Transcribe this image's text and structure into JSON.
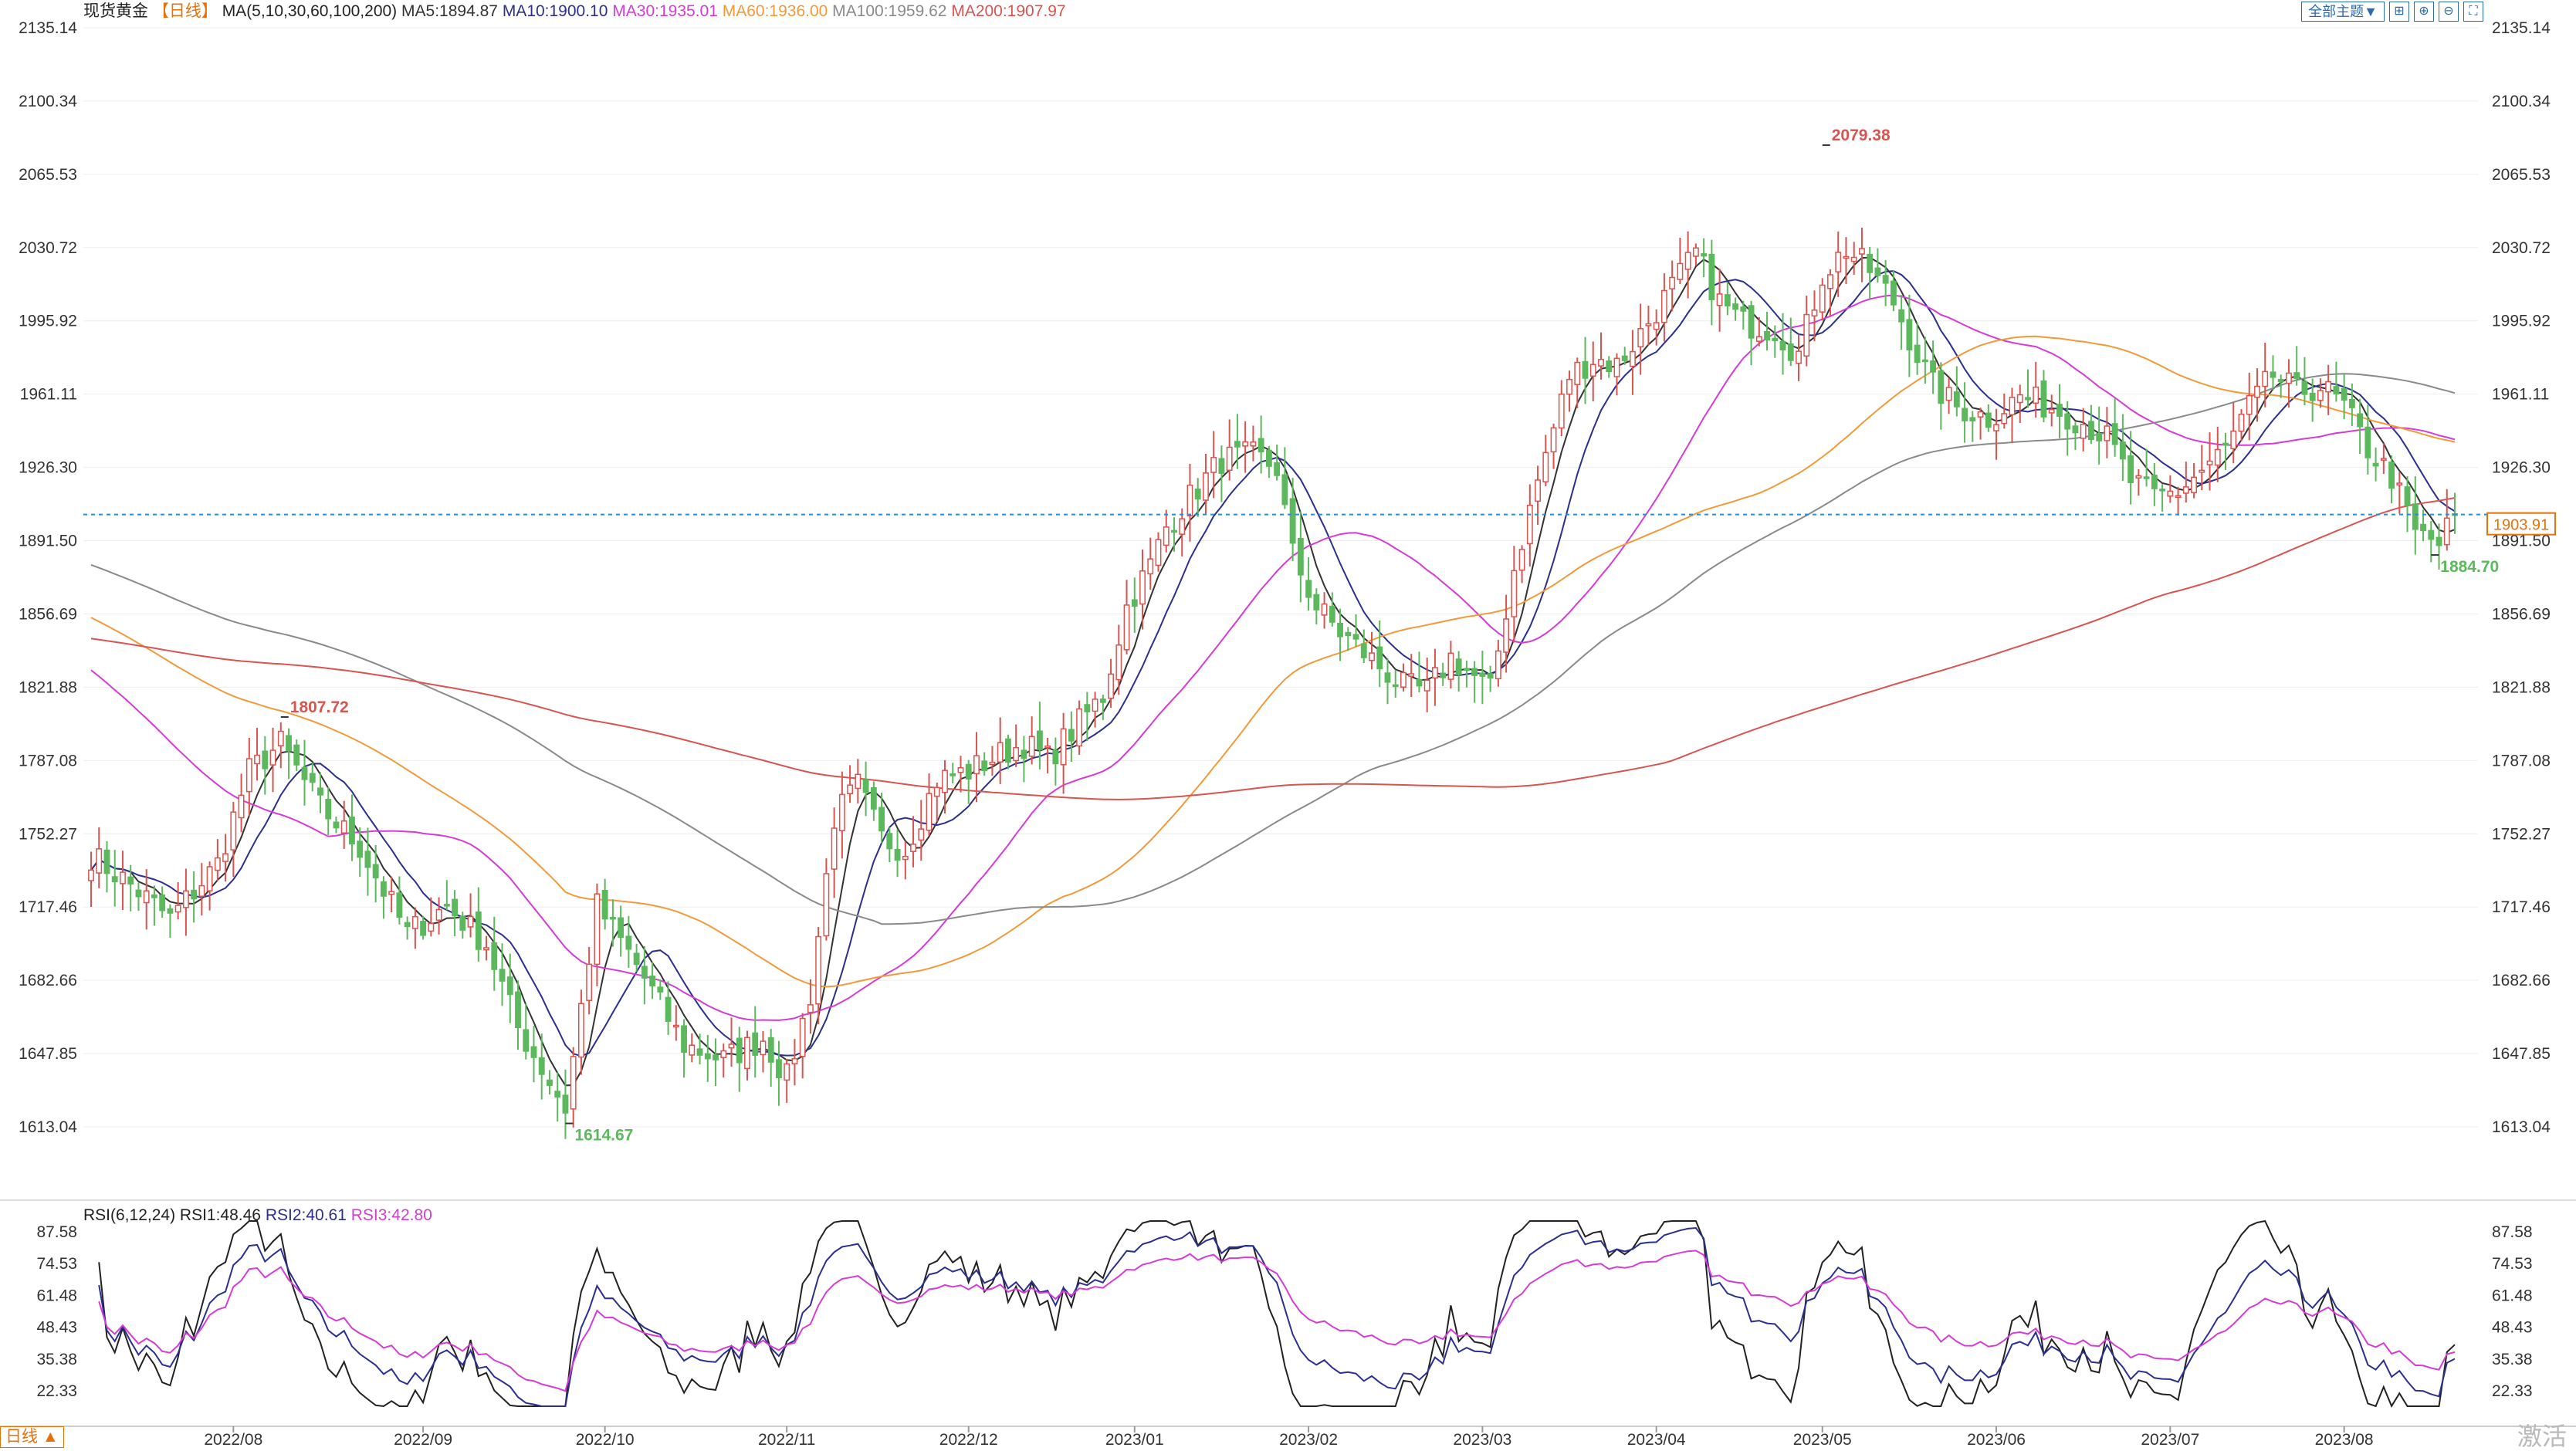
{
  "header": {
    "symbol": "现货黄金",
    "period_tag": "【日线】",
    "ma_label": "MA(5,10,30,60,100,200)",
    "ma_values": [
      {
        "text": "MA5:1894.87",
        "color": "#333333"
      },
      {
        "text": "MA10:1900.10",
        "color": "#2b2f8f"
      },
      {
        "text": "MA30:1935.01",
        "color": "#d63bd6"
      },
      {
        "text": "MA60:1936.00",
        "color": "#f29a3a"
      },
      {
        "text": "MA100:1959.62",
        "color": "#8a8a8a"
      },
      {
        "text": "MA200:1907.97",
        "color": "#d9534f"
      }
    ]
  },
  "toolbar": {
    "theme_label": "全部主题▼",
    "icons": [
      "crosshair-icon",
      "zoom-in-icon",
      "zoom-out-icon",
      "fullscreen-icon"
    ],
    "icon_glyphs": [
      "⊞",
      "⊕",
      "⊖",
      "⛶"
    ]
  },
  "rsi_header": {
    "label": "RSI(6,12,24)",
    "values": [
      {
        "text": "RSI1:48.46",
        "color": "#222222"
      },
      {
        "text": "RSI2:40.61",
        "color": "#2b2f8f"
      },
      {
        "text": "RSI3:42.80",
        "color": "#d63bd6"
      }
    ]
  },
  "period_button": "日线 ▲",
  "watermark": "激活",
  "colors": {
    "up": "#d9534f",
    "down": "#5cb85c",
    "grid": "#eeeeee",
    "current": "#2b8cd6"
  },
  "chart_data": {
    "type": "candlestick",
    "price_axis": {
      "ticks": [
        "2135.14",
        "2100.34",
        "2065.53",
        "2030.72",
        "1995.92",
        "1961.11",
        "1926.30",
        "1891.50",
        "1856.69",
        "1821.88",
        "1787.08",
        "1752.27",
        "1717.46",
        "1682.66",
        "1647.85",
        "1613.04"
      ],
      "range": [
        1613.04,
        2135.14
      ]
    },
    "rsi_axis": {
      "ticks": [
        "87.58",
        "74.53",
        "61.48",
        "48.43",
        "35.38",
        "22.33"
      ],
      "range": [
        22.33,
        87.58
      ]
    },
    "x_ticks": [
      "2022/08",
      "2022/09",
      "2022/10",
      "2022/11",
      "2022/12",
      "2023/01",
      "2023/02",
      "2023/03",
      "2023/04",
      "2023/05",
      "2023/06",
      "2023/07",
      "2023/08"
    ],
    "x_tick_bar_index": [
      18,
      42,
      65,
      88,
      111,
      132,
      154,
      176,
      198,
      219,
      241,
      263,
      285
    ],
    "current_price": 1903.91,
    "current_price_label": "1903.91",
    "annotations": [
      {
        "label": "1807.72",
        "price": 1807.72,
        "bar": 24,
        "type": "high"
      },
      {
        "label": "1614.67",
        "price": 1614.67,
        "bar": 60,
        "type": "low"
      },
      {
        "label": "2079.38",
        "price": 2079.38,
        "bar": 219,
        "type": "high"
      },
      {
        "label": "1884.70",
        "price": 1884.7,
        "bar": 296,
        "type": "low"
      }
    ],
    "anchors": [
      [
        0,
        1742
      ],
      [
        5,
        1728
      ],
      [
        10,
        1712
      ],
      [
        16,
        1738
      ],
      [
        20,
        1782
      ],
      [
        24,
        1795
      ],
      [
        29,
        1765
      ],
      [
        34,
        1746
      ],
      [
        40,
        1705
      ],
      [
        45,
        1718
      ],
      [
        50,
        1700
      ],
      [
        54,
        1660
      ],
      [
        60,
        1622
      ],
      [
        64,
        1718
      ],
      [
        69,
        1690
      ],
      [
        75,
        1652
      ],
      [
        80,
        1645
      ],
      [
        85,
        1655
      ],
      [
        88,
        1636
      ],
      [
        91,
        1676
      ],
      [
        94,
        1760
      ],
      [
        97,
        1775
      ],
      [
        100,
        1750
      ],
      [
        103,
        1745
      ],
      [
        107,
        1778
      ],
      [
        111,
        1782
      ],
      [
        115,
        1790
      ],
      [
        118,
        1795
      ],
      [
        121,
        1788
      ],
      [
        125,
        1805
      ],
      [
        128,
        1818
      ],
      [
        131,
        1860
      ],
      [
        134,
        1880
      ],
      [
        136,
        1898
      ],
      [
        139,
        1912
      ],
      [
        143,
        1930
      ],
      [
        147,
        1932
      ],
      [
        150,
        1926
      ],
      [
        152,
        1885
      ],
      [
        155,
        1860
      ],
      [
        158,
        1848
      ],
      [
        162,
        1835
      ],
      [
        166,
        1822
      ],
      [
        169,
        1820
      ],
      [
        172,
        1836
      ],
      [
        174,
        1830
      ],
      [
        177,
        1820
      ],
      [
        180,
        1878
      ],
      [
        183,
        1920
      ],
      [
        187,
        1970
      ],
      [
        190,
        1978
      ],
      [
        193,
        1975
      ],
      [
        196,
        1990
      ],
      [
        200,
        2012
      ],
      [
        203,
        2028
      ],
      [
        206,
        2005
      ],
      [
        209,
        1995
      ],
      [
        213,
        1992
      ],
      [
        216,
        1980
      ],
      [
        219,
        2018
      ],
      [
        222,
        2030
      ],
      [
        225,
        2020
      ],
      [
        228,
        2005
      ],
      [
        231,
        1980
      ],
      [
        233,
        1965
      ],
      [
        236,
        1955
      ],
      [
        240,
        1950
      ],
      [
        244,
        1960
      ],
      [
        248,
        1955
      ],
      [
        252,
        1948
      ],
      [
        255,
        1940
      ],
      [
        258,
        1920
      ],
      [
        261,
        1912
      ],
      [
        264,
        1915
      ],
      [
        267,
        1925
      ],
      [
        270,
        1935
      ],
      [
        273,
        1955
      ],
      [
        276,
        1970
      ],
      [
        279,
        1962
      ],
      [
        282,
        1965
      ],
      [
        285,
        1955
      ],
      [
        288,
        1935
      ],
      [
        291,
        1922
      ],
      [
        294,
        1895
      ],
      [
        297,
        1890
      ],
      [
        299,
        1904
      ]
    ],
    "bar_count": 300,
    "series": [
      {
        "name": "MA5",
        "color": "#333333"
      },
      {
        "name": "MA10",
        "color": "#2b2f8f"
      },
      {
        "name": "MA30",
        "color": "#d63bd6"
      },
      {
        "name": "MA60",
        "color": "#f29a3a"
      },
      {
        "name": "MA100",
        "color": "#8a8a8a"
      },
      {
        "name": "MA200",
        "color": "#d9534f"
      }
    ],
    "rsi_series": [
      {
        "name": "RSI1",
        "color": "#222222"
      },
      {
        "name": "RSI2",
        "color": "#2b2f8f"
      },
      {
        "name": "RSI3",
        "color": "#d63bd6"
      }
    ]
  }
}
